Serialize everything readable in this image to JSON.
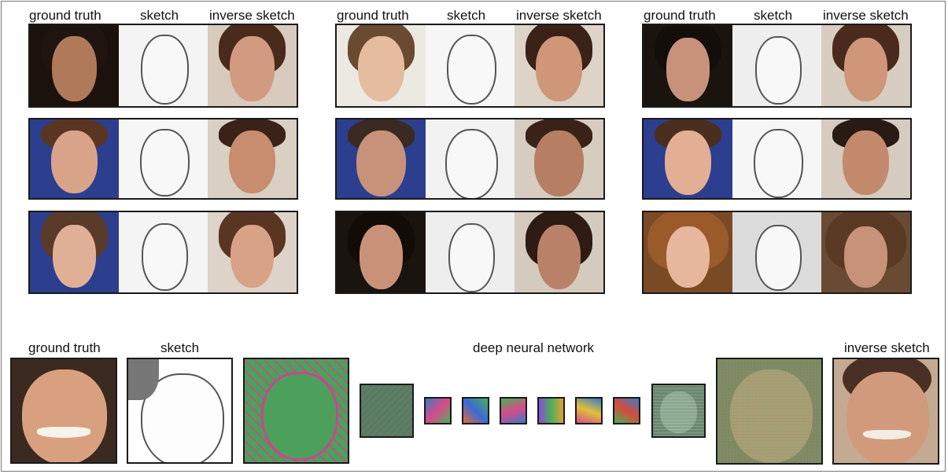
{
  "groups": [
    {
      "headers": {
        "ground_truth": "ground truth",
        "sketch": "sketch",
        "inverse_sketch": "inverse sketch"
      }
    },
    {
      "headers": {
        "ground_truth": "ground truth",
        "sketch": "sketch",
        "inverse_sketch": "inverse sketch"
      }
    },
    {
      "headers": {
        "ground_truth": "ground truth",
        "sketch": "sketch",
        "inverse_sketch": "inverse sketch"
      }
    }
  ],
  "bottom": {
    "ground_truth": "ground truth",
    "sketch": "sketch",
    "network": "deep neural network",
    "inverse_sketch": "inverse sketch"
  },
  "colors": {
    "skin_light": "#e6b79c",
    "skin_mid": "#c88c6e",
    "skin_dark": "#a06a4c",
    "hair_dark": "#2a1a14",
    "hair_brown": "#5a3522",
    "hair_auburn": "#8a4a24",
    "bg_blue": "#2c3e8e",
    "bg_beige": "#d9cfc3",
    "sketch_bg": "#f3f3f3",
    "feature_green": "#4aa25a",
    "feature_magenta": "#c8478f"
  }
}
